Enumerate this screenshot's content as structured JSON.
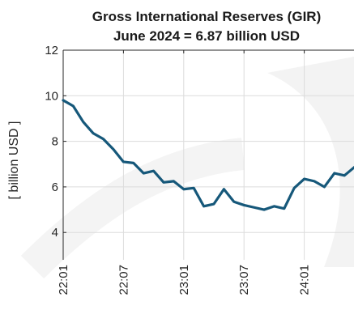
{
  "chart_data": {
    "type": "line",
    "title": "Gross International Reserves (GIR)",
    "subtitle": "June 2024 = 6.87 billion USD",
    "xlabel": "",
    "ylabel": "[ billion USD ]",
    "ylim": [
      2.8,
      12
    ],
    "yticks": [
      4,
      6,
      8,
      10,
      12
    ],
    "x_ticks": [
      {
        "index": 0,
        "label": "22:01"
      },
      {
        "index": 6,
        "label": "22:07"
      },
      {
        "index": 12,
        "label": "23:01"
      },
      {
        "index": 18,
        "label": "23:07"
      },
      {
        "index": 24,
        "label": "24:01"
      }
    ],
    "grid": true,
    "legend": "none",
    "line_color": "#16587a",
    "series": [
      {
        "values": [
          9.8,
          9.55,
          8.85,
          8.35,
          8.1,
          7.65,
          7.1,
          7.05,
          6.6,
          6.7,
          6.2,
          6.25,
          5.9,
          5.95,
          5.15,
          5.25,
          5.9,
          5.35,
          5.2,
          5.1,
          5.0,
          5.15,
          5.05,
          5.95,
          6.35,
          6.25,
          6.0,
          6.6,
          6.5,
          6.87
        ]
      }
    ]
  }
}
